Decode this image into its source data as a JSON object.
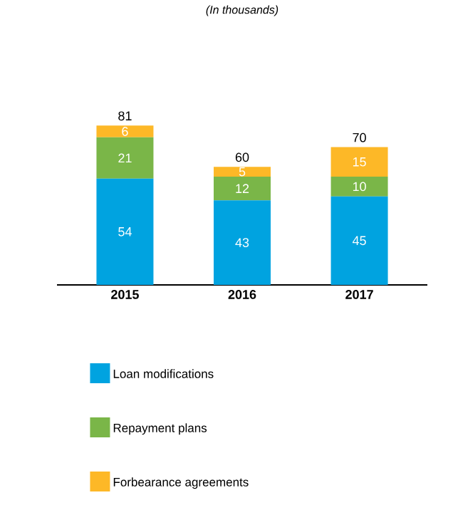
{
  "chart_data": {
    "type": "bar",
    "subtitle": "(In thousands)",
    "stacked": true,
    "data_labels": true,
    "legend": "bottom",
    "categories": [
      "2015",
      "2016",
      "2017"
    ],
    "series": [
      {
        "name": "Loan modifications",
        "color": "#00a3e0",
        "values": [
          54,
          43,
          45
        ]
      },
      {
        "name": "Repayment plans",
        "color": "#7ab648",
        "values": [
          21,
          12,
          10
        ]
      },
      {
        "name": "Forbearance agreements",
        "color": "#fdb827",
        "values": [
          6,
          5,
          15
        ]
      }
    ],
    "totals": [
      "81",
      "60",
      "70"
    ]
  }
}
